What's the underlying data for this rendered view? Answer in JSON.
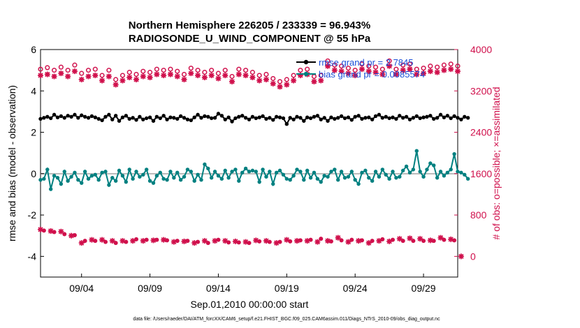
{
  "chart_data": {
    "type": "line",
    "title_line1": "Northern Hemisphere 226205 / 233339 = 96.943%",
    "title_line2": "RADIOSONDE_U_WIND_COMPONENT @ 55 hPa",
    "xlabel": "Sep.01,2010 00:00:00 start",
    "ylabel_left": "rmse and bias (model - observation)",
    "ylabel_right": "# of obs: o=possible; ×=assimilated",
    "footer": "data file: /Users/raeder/DAI/ATM_forcXX/CAM6_setup/f.e21.FHIST_BGC.f09_025.CAM6assim.011/Diags_NTrS_2010-09/obs_diag_output.nc",
    "x_range_days": [
      1.0,
      31.5
    ],
    "x_ticks": [
      {
        "day": 4,
        "label": "09/04"
      },
      {
        "day": 9,
        "label": "09/09"
      },
      {
        "day": 14,
        "label": "09/14"
      },
      {
        "day": 19,
        "label": "09/19"
      },
      {
        "day": 24,
        "label": "09/24"
      },
      {
        "day": 29,
        "label": "09/29"
      }
    ],
    "y_left_range": [
      -5,
      6
    ],
    "y_left_ticks": [
      -4,
      -2,
      0,
      2,
      4,
      6
    ],
    "y_right_range": [
      -400,
      4000
    ],
    "y_right_ticks": [
      0,
      800,
      1600,
      2400,
      3200,
      4000
    ],
    "legend": {
      "placement": "top-right",
      "rmse_label": "rmse grand pr = 2.7845",
      "bias_label": "bias grand pr = 0.0085574"
    },
    "colors": {
      "rmse": "#000000",
      "bias": "#008080",
      "obs": "#d0104c",
      "legend_text": "#1a4fd8",
      "zero_line": "#bbbbbb"
    },
    "x_start_day": 1.0,
    "x_step_day": 0.25,
    "series": [
      {
        "name": "rmse",
        "axis": "left",
        "values": [
          2.65,
          2.7,
          2.75,
          2.68,
          2.85,
          2.72,
          2.78,
          2.7,
          2.8,
          2.75,
          2.85,
          2.7,
          2.82,
          2.75,
          2.7,
          2.78,
          2.72,
          2.65,
          2.58,
          2.75,
          2.85,
          2.62,
          2.8,
          2.55,
          2.72,
          2.8,
          2.65,
          2.7,
          2.6,
          2.75,
          2.62,
          2.68,
          2.72,
          2.55,
          2.75,
          2.68,
          2.8,
          2.62,
          2.72,
          2.7,
          2.65,
          2.78,
          2.7,
          2.62,
          2.58,
          2.72,
          2.85,
          2.7,
          2.78,
          2.75,
          2.68,
          2.7,
          2.9,
          2.8,
          2.62,
          2.72,
          2.52,
          2.68,
          2.75,
          2.8,
          2.7,
          2.62,
          2.75,
          2.68,
          2.72,
          2.78,
          2.65,
          2.7,
          2.6,
          2.75,
          2.72,
          2.68,
          2.4,
          2.7,
          2.62,
          2.75,
          2.7,
          2.55,
          2.72,
          2.68,
          2.75,
          2.8,
          2.62,
          2.7,
          2.55,
          2.72,
          2.65,
          2.7,
          2.78,
          2.68,
          2.72,
          2.6,
          2.75,
          2.8,
          2.65,
          2.7,
          2.72,
          2.62,
          2.78,
          2.85,
          2.7,
          2.75,
          2.68,
          2.72,
          2.65,
          2.8,
          2.7,
          2.75,
          2.62,
          2.7,
          2.78,
          2.68,
          2.72,
          2.75,
          2.8,
          2.65,
          2.7,
          2.85,
          2.72,
          2.8,
          2.68,
          2.78,
          2.7,
          2.62,
          2.75,
          2.7
        ]
      },
      {
        "name": "bias",
        "axis": "left",
        "values": [
          -0.3,
          -0.25,
          0.2,
          -0.75,
          -0.1,
          -0.2,
          -0.5,
          0.1,
          -0.35,
          -0.15,
          0.05,
          -0.3,
          -0.45,
          0.1,
          -0.25,
          -0.1,
          -0.05,
          -0.3,
          0.05,
          0.1,
          -0.55,
          -0.2,
          -0.35,
          0.15,
          -0.1,
          -0.4,
          0.2,
          -0.25,
          0.1,
          -0.15,
          -0.05,
          0.2,
          -0.35,
          -0.45,
          -0.1,
          0.05,
          -0.25,
          -0.3,
          0.1,
          -0.2,
          0.05,
          -0.3,
          -0.15,
          0.2,
          0.1,
          -0.35,
          -0.05,
          -0.3,
          0.45,
          0.25,
          -0.2,
          0.1,
          -0.1,
          -0.25,
          0.15,
          -0.2,
          0.1,
          0.2,
          -0.35,
          0.05,
          0.25,
          0.1,
          0.15,
          0.1,
          -0.4,
          0.2,
          -0.15,
          0.1,
          -0.5,
          0.05,
          0.15,
          -0.05,
          -0.25,
          -0.3,
          -0.1,
          0.2,
          0.1,
          -0.3,
          0.15,
          -0.2,
          0.05,
          -0.25,
          -0.4,
          -0.1,
          -0.15,
          0.1,
          0.2,
          -0.3,
          0.1,
          -0.2,
          -0.15,
          0.1,
          -0.3,
          -0.5,
          0.05,
          0.15,
          -0.2,
          -0.35,
          0.1,
          -0.15,
          0.2,
          -0.05,
          -0.25,
          0.1,
          -0.2,
          -0.15,
          0.15,
          0.35,
          0.05,
          0.2,
          1.1,
          0.1,
          -0.15,
          0.2,
          0.5,
          0.4,
          -0.2,
          0.1,
          -0.1,
          0.05,
          0.2,
          0.95,
          0.1,
          0.05,
          -0.05,
          -0.25
        ]
      },
      {
        "name": "obs possible",
        "axis": "right",
        "values": [
          3620,
          3580,
          3650,
          3540,
          3600,
          3480,
          3660,
          3580,
          3600,
          3620,
          3700,
          3620,
          3540,
          3580,
          3600,
          3560,
          3620,
          3480,
          3500,
          3540,
          3600,
          3400,
          3420,
          3360,
          3500,
          3460,
          3560,
          3420,
          3520,
          3400,
          3580,
          3640,
          3560,
          3680,
          3620,
          3660,
          3600,
          3600,
          3620,
          3500,
          3580,
          3640,
          3520,
          3560,
          3640,
          3500,
          3600,
          3660,
          3560,
          3540,
          3600,
          3700,
          3540,
          3580,
          3600,
          3620,
          3480,
          3560,
          3620,
          3540,
          3600,
          3580,
          3560,
          3620,
          3500,
          3560,
          3520,
          3600,
          3440,
          3240,
          3380,
          3300,
          3420,
          3440,
          3500,
          3460,
          3600,
          3540,
          3620,
          3520,
          3480,
          3560,
          3500,
          3540,
          3780,
          3620,
          3700,
          3560,
          3680,
          3600,
          3640,
          3720,
          3600,
          3560,
          3720,
          3620,
          3680,
          3600,
          3660,
          3700,
          3620,
          3600,
          3780,
          3660,
          3620,
          3680,
          3700,
          3640,
          3720,
          3600,
          3620,
          3700,
          3640,
          3720,
          3680,
          3800,
          3660,
          3720,
          3700,
          3660,
          3720,
          3640,
          3680,
          3700
        ]
      },
      {
        "name": "obs assimilated",
        "axis": "right",
        "values": [
          3500,
          3460,
          3520,
          3420,
          3480,
          3380,
          3540,
          3460,
          3480,
          3500,
          3580,
          3500,
          3420,
          3460,
          3480,
          3440,
          3500,
          3380,
          3400,
          3420,
          3480,
          3300,
          3320,
          3260,
          3400,
          3360,
          3460,
          3320,
          3420,
          3300,
          3480,
          3540,
          3460,
          3580,
          3520,
          3560,
          3500,
          3500,
          3520,
          3400,
          3480,
          3540,
          3420,
          3460,
          3540,
          3400,
          3500,
          3560,
          3460,
          3440,
          3500,
          3600,
          3440,
          3480,
          3500,
          3520,
          3380,
          3460,
          3520,
          3440,
          3500,
          3480,
          3460,
          3520,
          3400,
          3460,
          3420,
          3500,
          3340,
          3140,
          3280,
          3200,
          3320,
          3340,
          3400,
          3360,
          3500,
          3440,
          3520,
          3420,
          3380,
          3460,
          3400,
          3440,
          3680,
          3520,
          3600,
          3460,
          3580,
          3500,
          3540,
          3620,
          3500,
          3460,
          3620,
          3520,
          3580,
          3500,
          3560,
          3600,
          3520,
          3500,
          3680,
          3560,
          3520,
          3580,
          3600,
          3540,
          3620,
          3500,
          3520,
          3600,
          3540,
          3620,
          3580,
          3700,
          3560,
          3620,
          3600,
          3560,
          3620,
          3540,
          3580,
          3600
        ]
      },
      {
        "name": "obs possible (lower)",
        "axis": "right",
        "values": [
          520,
          500,
          480,
          490,
          470,
          460,
          480,
          430,
          450,
          400,
          410,
          380,
          260,
          300,
          340,
          320,
          300,
          340,
          320,
          280,
          240,
          300,
          260,
          320,
          300,
          280,
          320,
          300,
          330,
          310,
          300,
          320,
          300,
          310,
          320,
          300,
          320,
          310,
          300,
          280,
          300,
          270,
          290,
          300,
          280,
          260,
          280,
          270,
          300,
          260,
          280,
          300,
          320,
          290,
          300,
          270,
          310,
          290,
          270,
          300,
          280,
          260,
          300,
          310,
          290,
          270,
          300,
          280,
          310,
          260,
          280,
          300,
          320,
          290,
          280,
          300,
          310,
          290,
          300,
          320,
          300,
          280,
          340,
          310,
          300,
          290,
          320,
          360,
          310,
          300,
          280,
          320,
          340,
          300,
          310,
          290,
          260,
          300,
          320,
          300,
          330,
          310,
          290,
          320,
          380,
          340,
          300,
          320,
          350,
          300,
          310,
          340,
          300,
          320,
          310,
          300,
          340,
          360,
          320,
          300,
          330,
          310,
          300,
          0
        ]
      }
    ]
  }
}
